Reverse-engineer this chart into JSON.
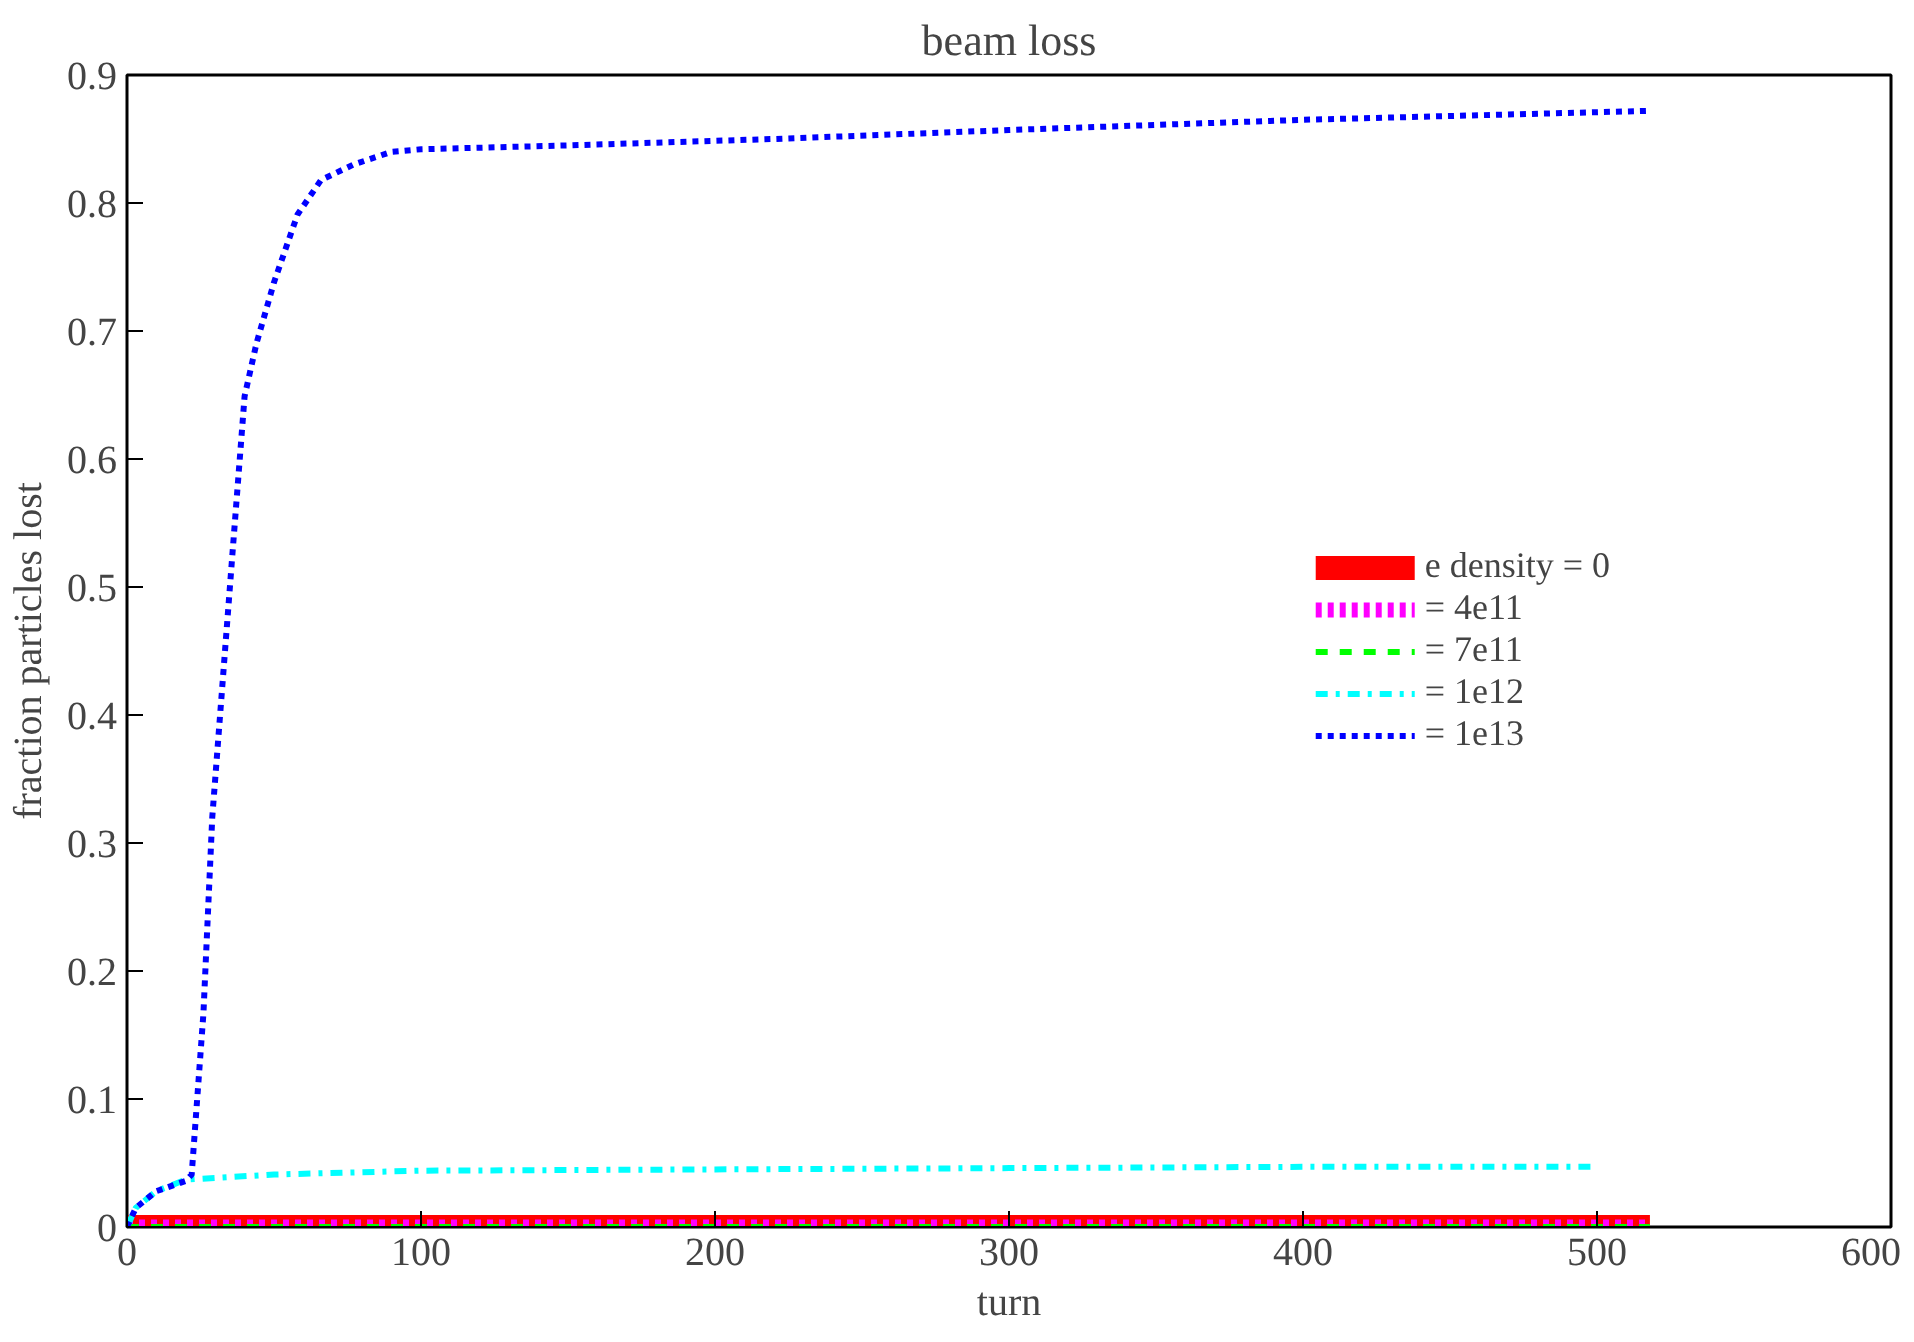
{
  "chart_data": {
    "type": "line",
    "title": "beam loss",
    "xlabel": "turn",
    "ylabel": "fraction particles lost",
    "xlim": [
      0,
      600
    ],
    "ylim": [
      0,
      0.9
    ],
    "xticks": [
      0,
      100,
      200,
      300,
      400,
      500,
      600
    ],
    "yticks": [
      0,
      0.1,
      0.2,
      0.3,
      0.4,
      0.5,
      0.6,
      0.7,
      0.8,
      0.9
    ],
    "grid": false,
    "legend": "right",
    "marker": "none",
    "series": [
      {
        "name": "e density = 0",
        "color": "#ff0000",
        "line_style": "solid",
        "x": [
          0,
          100,
          200,
          300,
          400,
          518
        ],
        "values": [
          0,
          0,
          0,
          0,
          0,
          0
        ]
      },
      {
        "name": "= 4e11",
        "color": "#ff00ff",
        "line_style": "dotted",
        "x": [
          0,
          100,
          200,
          300,
          400,
          518
        ],
        "values": [
          0,
          0,
          0,
          0,
          0,
          0
        ]
      },
      {
        "name": "= 7e11",
        "color": "#00ff00",
        "line_style": "dashed",
        "x": [
          0,
          100,
          200,
          300,
          400,
          518
        ],
        "values": [
          0,
          0,
          0,
          0,
          0,
          0
        ]
      },
      {
        "name": "= 1e12",
        "color": "#00ffff",
        "line_style": "dashdot",
        "x": [
          0,
          3,
          10,
          20,
          50,
          100,
          200,
          300,
          400,
          500
        ],
        "values": [
          0,
          0.015,
          0.028,
          0.037,
          0.041,
          0.044,
          0.045,
          0.046,
          0.047,
          0.047
        ]
      },
      {
        "name": "= 1e13",
        "color": "#0000ff",
        "line_style": "dotted",
        "x": [
          0,
          3,
          10,
          20,
          22,
          26,
          29,
          33,
          36,
          40,
          44,
          50,
          58,
          66,
          77,
          90,
          100,
          150,
          220,
          300,
          400,
          518
        ],
        "values": [
          0,
          0.015,
          0.028,
          0.036,
          0.041,
          0.167,
          0.32,
          0.44,
          0.53,
          0.649,
          0.69,
          0.738,
          0.791,
          0.818,
          0.83,
          0.84,
          0.842,
          0.845,
          0.85,
          0.857,
          0.865,
          0.872
        ]
      }
    ]
  }
}
